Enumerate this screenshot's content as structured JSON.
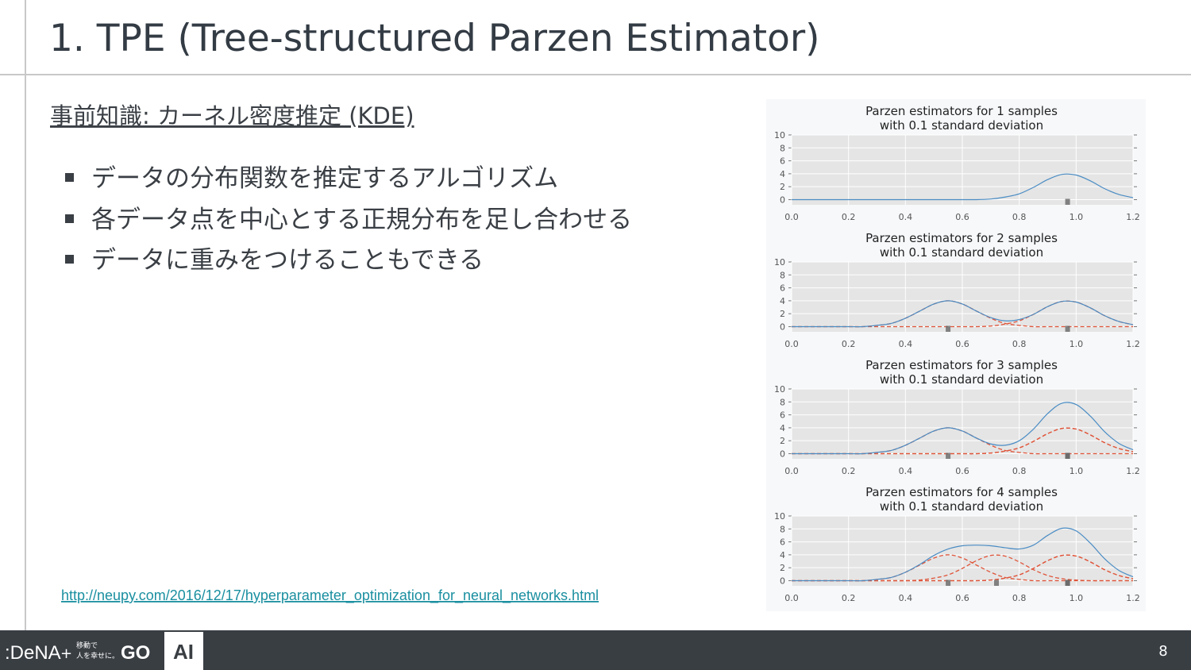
{
  "header": {
    "title": "1. TPE (Tree-structured Parzen Estimator)"
  },
  "section_heading": "事前知識: カーネル密度推定 (KDE)",
  "bullets": [
    "データの分布関数を推定するアルゴリズム",
    "各データ点を中心とする正規分布を足し合わせる",
    "データに重みをつけることもできる"
  ],
  "link": "http://neupy.com/2016/12/17/hyperparameter_optimization_for_neural_networks.html",
  "footer": {
    "brand": ":DeNA",
    "plus": "+",
    "tagline": [
      "移動で",
      "人を幸せに。"
    ],
    "go": "GO",
    "ai": "AI",
    "page_number": "8"
  },
  "chart_data": [
    {
      "type": "line",
      "title": "Parzen estimators for 1 samples",
      "subtitle": "with 0.1 standard deviation",
      "x": [
        0,
        0.05,
        0.1,
        0.15,
        0.2,
        0.25,
        0.3,
        0.35,
        0.4,
        0.45,
        0.5,
        0.55,
        0.6,
        0.65,
        0.7,
        0.75,
        0.8,
        0.85,
        0.9,
        0.95,
        1,
        1.05,
        1.1,
        1.15,
        1.2
      ],
      "series": [
        {
          "color": "#4a8cc4",
          "dashed": false,
          "values": [
            0,
            0,
            0,
            0,
            0,
            0,
            0,
            0,
            0,
            0,
            0,
            0,
            0,
            0,
            0.1,
            0.4,
            0.9,
            1.9,
            3.1,
            3.9,
            3.8,
            2.9,
            1.7,
            0.8,
            0.3
          ]
        }
      ],
      "samples": [
        0.97
      ],
      "xlim": [
        0,
        1.2
      ],
      "xticks": [
        {
          "value": 0,
          "label": "0.0"
        },
        0.2,
        0.4,
        0.6,
        0.8,
        {
          "value": 1,
          "label": "1.0"
        },
        1.2
      ],
      "ylim": [
        -0.8,
        10
      ],
      "yticks": [
        0,
        2,
        4,
        6,
        8,
        10
      ],
      "grid": true
    },
    {
      "type": "line",
      "title": "Parzen estimators for 2 samples",
      "subtitle": "with 0.1 standard deviation",
      "x": [
        0,
        0.05,
        0.1,
        0.15,
        0.2,
        0.25,
        0.3,
        0.35,
        0.4,
        0.45,
        0.5,
        0.55,
        0.6,
        0.65,
        0.7,
        0.75,
        0.8,
        0.85,
        0.9,
        0.95,
        1,
        1.05,
        1.1,
        1.15,
        1.2
      ],
      "series": [
        {
          "color": "#e0553a",
          "dashed": true,
          "values": [
            0,
            0,
            0,
            0,
            0,
            0,
            0.2,
            0.5,
            1.3,
            2.4,
            3.5,
            4,
            3.5,
            2.4,
            1.3,
            0.5,
            0.2,
            0,
            0,
            0,
            0,
            0,
            0,
            0,
            0
          ]
        },
        {
          "color": "#e0553a",
          "dashed": true,
          "values": [
            0,
            0,
            0,
            0,
            0,
            0,
            0,
            0,
            0,
            0,
            0,
            0,
            0,
            0,
            0.1,
            0.4,
            0.9,
            1.9,
            3.1,
            3.9,
            3.8,
            2.9,
            1.7,
            0.8,
            0.3
          ]
        },
        {
          "color": "#4a8cc4",
          "dashed": false,
          "values": [
            0,
            0,
            0,
            0,
            0,
            0,
            0.2,
            0.5,
            1.3,
            2.4,
            3.5,
            4,
            3.5,
            2.4,
            1.4,
            0.9,
            1.1,
            1.9,
            3.1,
            3.9,
            3.8,
            2.9,
            1.7,
            0.8,
            0.3
          ]
        }
      ],
      "samples": [
        0.55,
        0.97
      ],
      "xlim": [
        0,
        1.2
      ],
      "xticks": [
        {
          "value": 0,
          "label": "0.0"
        },
        0.2,
        0.4,
        0.6,
        0.8,
        {
          "value": 1,
          "label": "1.0"
        },
        1.2
      ],
      "ylim": [
        -0.8,
        10
      ],
      "yticks": [
        0,
        2,
        4,
        6,
        8,
        10
      ],
      "grid": true
    },
    {
      "type": "line",
      "title": "Parzen estimators for 3 samples",
      "subtitle": "with 0.1 standard deviation",
      "x": [
        0,
        0.05,
        0.1,
        0.15,
        0.2,
        0.25,
        0.3,
        0.35,
        0.4,
        0.45,
        0.5,
        0.55,
        0.6,
        0.65,
        0.7,
        0.75,
        0.8,
        0.85,
        0.9,
        0.95,
        1,
        1.05,
        1.1,
        1.15,
        1.2
      ],
      "series": [
        {
          "color": "#e0553a",
          "dashed": true,
          "values": [
            0,
            0,
            0,
            0,
            0,
            0,
            0.2,
            0.5,
            1.3,
            2.4,
            3.5,
            4,
            3.5,
            2.4,
            1.3,
            0.5,
            0.2,
            0,
            0,
            0,
            0,
            0,
            0,
            0,
            0
          ]
        },
        {
          "color": "#e0553a",
          "dashed": true,
          "values": [
            0,
            0,
            0,
            0,
            0,
            0,
            0,
            0,
            0,
            0,
            0,
            0,
            0,
            0,
            0.1,
            0.4,
            0.9,
            1.9,
            3.1,
            3.9,
            3.8,
            2.9,
            1.7,
            0.8,
            0.3
          ]
        },
        {
          "color": "#e0553a",
          "dashed": true,
          "values": [
            0,
            0,
            0,
            0,
            0,
            0,
            0,
            0,
            0,
            0,
            0,
            0,
            0,
            0,
            0.1,
            0.4,
            0.9,
            1.9,
            3.1,
            3.9,
            3.8,
            2.9,
            1.7,
            0.8,
            0.3
          ]
        },
        {
          "color": "#4a8cc4",
          "dashed": false,
          "values": [
            0,
            0,
            0,
            0,
            0,
            0,
            0.2,
            0.5,
            1.3,
            2.4,
            3.5,
            4,
            3.5,
            2.4,
            1.5,
            1.3,
            2,
            3.8,
            6.2,
            7.8,
            7.6,
            5.8,
            3.4,
            1.6,
            0.6
          ]
        }
      ],
      "samples": [
        0.55,
        0.97,
        0.97
      ],
      "xlim": [
        0,
        1.2
      ],
      "xticks": [
        {
          "value": 0,
          "label": "0.0"
        },
        0.2,
        0.4,
        0.6,
        0.8,
        {
          "value": 1,
          "label": "1.0"
        },
        1.2
      ],
      "ylim": [
        -0.8,
        10
      ],
      "yticks": [
        0,
        2,
        4,
        6,
        8,
        10
      ],
      "grid": true
    },
    {
      "type": "line",
      "title": "Parzen estimators for 4 samples",
      "subtitle": "with 0.1 standard deviation",
      "x": [
        0,
        0.05,
        0.1,
        0.15,
        0.2,
        0.25,
        0.3,
        0.35,
        0.4,
        0.45,
        0.5,
        0.55,
        0.6,
        0.65,
        0.7,
        0.75,
        0.8,
        0.85,
        0.9,
        0.95,
        1,
        1.05,
        1.1,
        1.15,
        1.2
      ],
      "series": [
        {
          "color": "#e0553a",
          "dashed": true,
          "values": [
            0,
            0,
            0,
            0,
            0,
            0,
            0.2,
            0.5,
            1.3,
            2.4,
            3.5,
            4,
            3.5,
            2.4,
            1.3,
            0.5,
            0.2,
            0,
            0,
            0,
            0,
            0,
            0,
            0,
            0
          ]
        },
        {
          "color": "#e0553a",
          "dashed": true,
          "values": [
            0,
            0,
            0,
            0,
            0,
            0,
            0,
            0,
            0,
            0.1,
            0.4,
            0.9,
            1.9,
            3.1,
            3.9,
            3.8,
            2.9,
            1.7,
            0.8,
            0.3,
            0.1,
            0,
            0,
            0,
            0
          ]
        },
        {
          "color": "#e0553a",
          "dashed": true,
          "values": [
            0,
            0,
            0,
            0,
            0,
            0,
            0,
            0,
            0,
            0,
            0,
            0,
            0,
            0,
            0.1,
            0.4,
            0.9,
            1.9,
            3.1,
            3.9,
            3.8,
            2.9,
            1.7,
            0.8,
            0.3
          ]
        },
        {
          "color": "#e0553a",
          "dashed": true,
          "values": [
            0,
            0,
            0,
            0,
            0,
            0,
            0,
            0,
            0,
            0,
            0,
            0,
            0,
            0,
            0.1,
            0.4,
            0.9,
            1.9,
            3.1,
            3.9,
            3.8,
            2.9,
            1.7,
            0.8,
            0.3
          ]
        },
        {
          "color": "#4a8cc4",
          "dashed": false,
          "values": [
            0,
            0,
            0,
            0,
            0,
            0,
            0.2,
            0.5,
            1.3,
            2.5,
            3.9,
            4.9,
            5.4,
            5.5,
            5.4,
            5.1,
            4.9,
            5.5,
            7,
            8.1,
            7.7,
            5.8,
            3.4,
            1.6,
            0.6
          ]
        }
      ],
      "samples": [
        0.55,
        0.72,
        0.97,
        0.97
      ],
      "xlim": [
        0,
        1.2
      ],
      "xticks": [
        {
          "value": 0,
          "label": "0.0"
        },
        0.2,
        0.4,
        0.6,
        0.8,
        {
          "value": 1,
          "label": "1.0"
        },
        1.2
      ],
      "ylim": [
        -0.8,
        10
      ],
      "yticks": [
        0,
        2,
        4,
        6,
        8,
        10
      ],
      "grid": true
    }
  ]
}
